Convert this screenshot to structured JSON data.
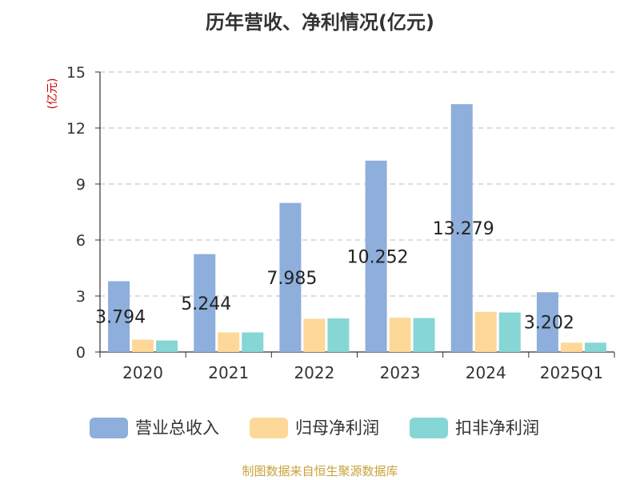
{
  "chart_data": {
    "type": "bar",
    "title": "历年营收、净利情况(亿元)",
    "ylabel": "(亿元)",
    "ylim": [
      0,
      15
    ],
    "yticks": [
      0,
      3,
      6,
      9,
      12,
      15
    ],
    "grid": true,
    "legend_position": "bottom",
    "categories": [
      "2020",
      "2021",
      "2022",
      "2023",
      "2024",
      "2025Q1"
    ],
    "series": [
      {
        "name": "营业总收入",
        "color": "#8eaedb",
        "values": [
          3.794,
          5.244,
          7.985,
          10.252,
          13.279,
          3.202
        ],
        "labels": [
          "3.794",
          "5.244",
          "7.985",
          "10.252",
          "13.279",
          "3.202"
        ]
      },
      {
        "name": "归母净利润",
        "color": "#fdd898",
        "values": [
          0.66,
          1.05,
          1.78,
          1.84,
          2.15,
          0.5
        ]
      },
      {
        "name": "扣非净利润",
        "color": "#86d6d6",
        "values": [
          0.62,
          1.05,
          1.8,
          1.82,
          2.12,
          0.5
        ]
      }
    ]
  },
  "source": "制图数据来自恒生聚源数据库"
}
